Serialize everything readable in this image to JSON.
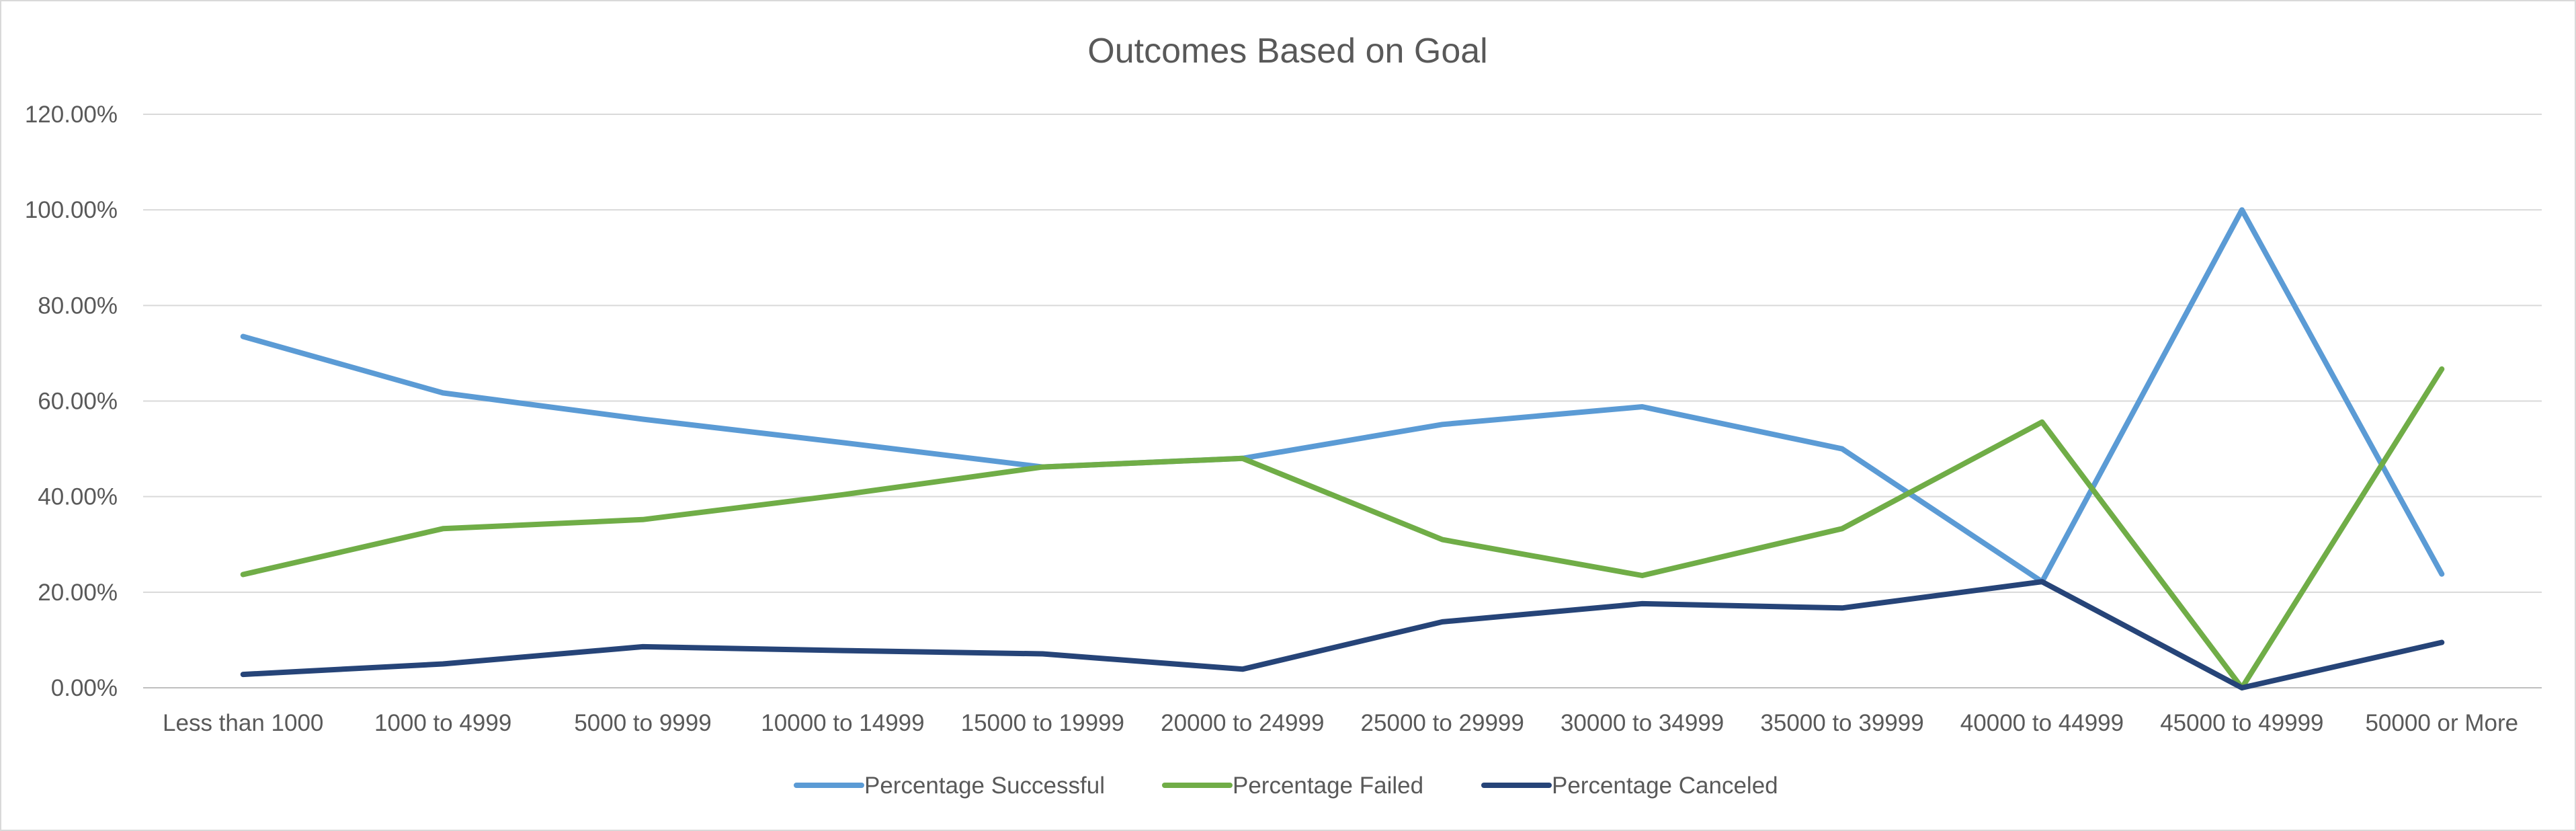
{
  "chart_data": {
    "type": "line",
    "title": "Outcomes Based on Goal",
    "xlabel": "",
    "ylabel": "",
    "ylim": [
      0,
      1.2
    ],
    "yticks": [
      0,
      0.2,
      0.4,
      0.6,
      0.8,
      1.0,
      1.2
    ],
    "ytick_labels": [
      "0.00%",
      "20.00%",
      "40.00%",
      "60.00%",
      "80.00%",
      "100.00%",
      "120.00%"
    ],
    "grid": true,
    "legend_position": "bottom",
    "categories": [
      "Less than 1000",
      "1000 to 4999",
      "5000 to 9999",
      "10000 to 14999",
      "15000 to 19999",
      "20000 to 24999",
      "25000 to 29999",
      "30000 to 34999",
      "35000 to 39999",
      "40000 to 44999",
      "45000 to 49999",
      "50000 or More"
    ],
    "series": [
      {
        "name": "Percentage Successful",
        "color": "#5b9bd5",
        "values": [
          0.735,
          0.617,
          0.562,
          0.513,
          0.462,
          0.48,
          0.551,
          0.588,
          0.5,
          0.222,
          1.0,
          0.238
        ]
      },
      {
        "name": "Percentage Failed",
        "color": "#70ad47",
        "values": [
          0.237,
          0.333,
          0.352,
          0.404,
          0.462,
          0.48,
          0.31,
          0.235,
          0.333,
          0.556,
          0.0,
          0.667
        ]
      },
      {
        "name": "Percentage Canceled",
        "color": "#264478",
        "values": [
          0.028,
          0.05,
          0.086,
          0.078,
          0.071,
          0.039,
          0.138,
          0.176,
          0.167,
          0.222,
          0.0,
          0.095
        ]
      }
    ]
  }
}
